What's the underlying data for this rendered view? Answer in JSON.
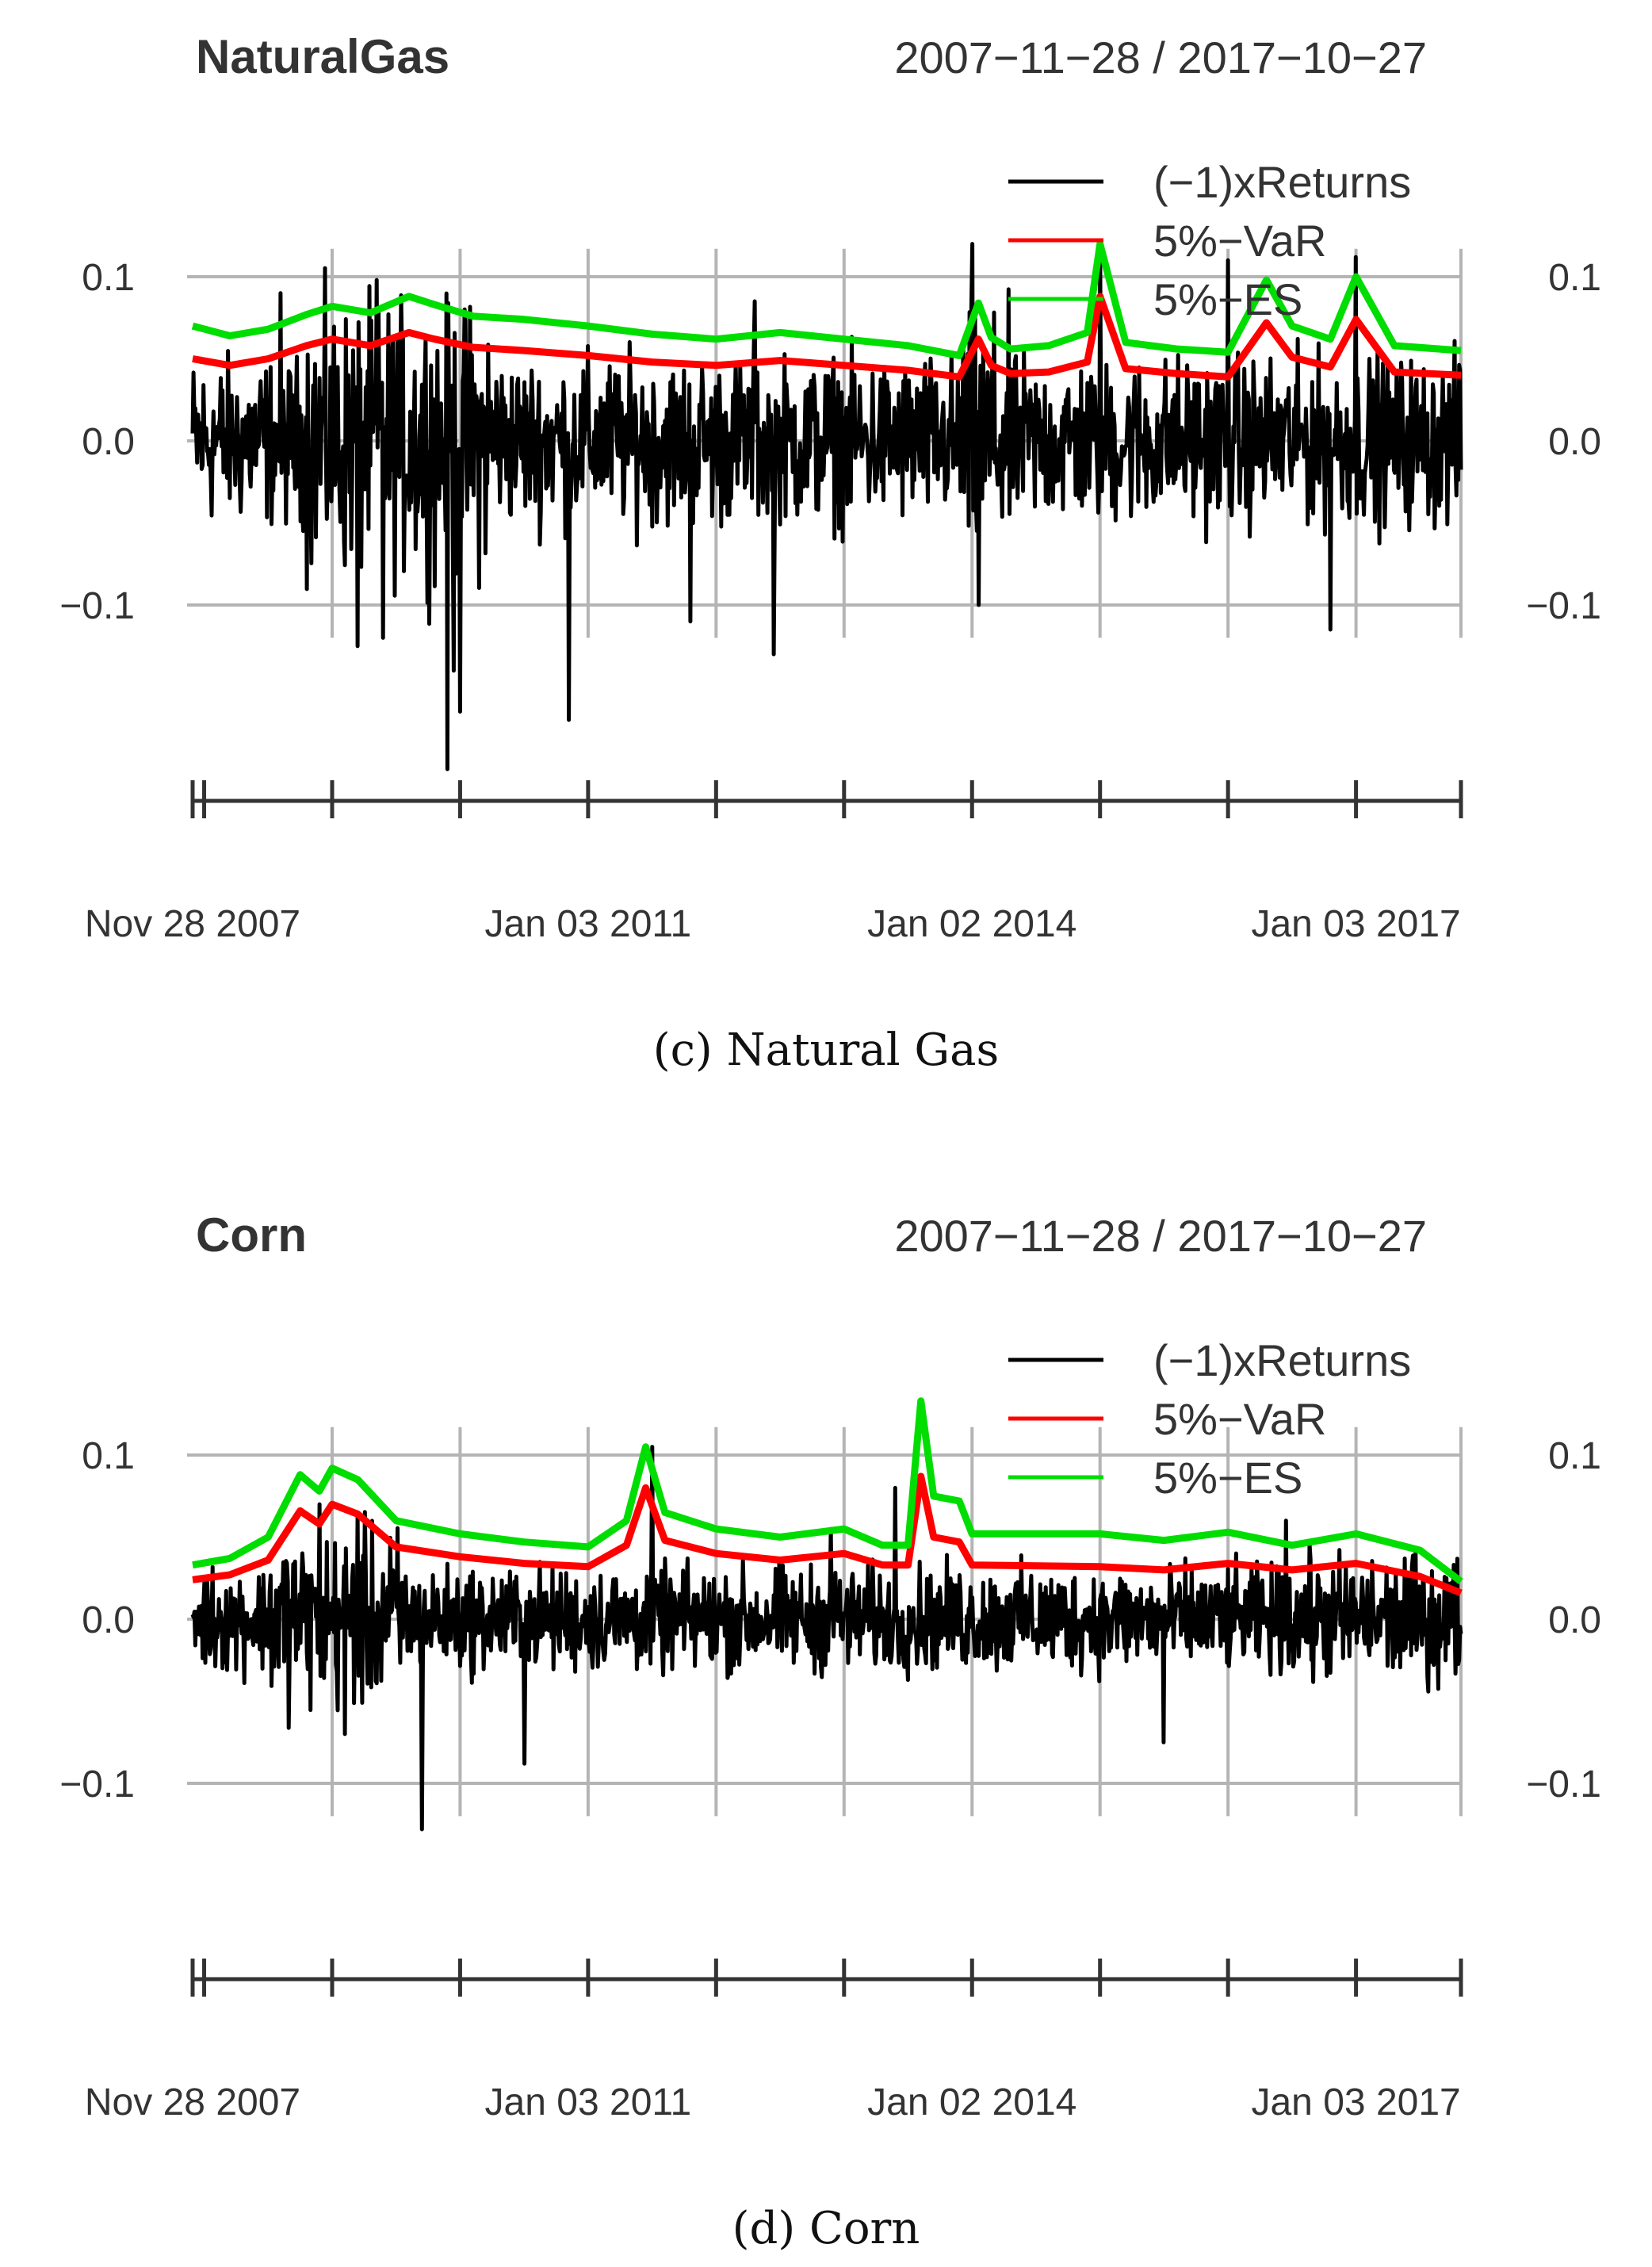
{
  "chart_data": [
    {
      "type": "line",
      "title": "NaturalGas",
      "date_range": "2007−11−28 / 2017−10−27",
      "caption": "(c)  Natural Gas",
      "ylim": [
        -0.2,
        0.15
      ],
      "y_ticks": [
        {
          "value": 0.1,
          "label": "0.1"
        },
        {
          "value": 0.0,
          "label": "0.0"
        },
        {
          "value": -0.1,
          "label": "−0.1"
        }
      ],
      "x_grid_dates": [
        2009.0,
        2010.0,
        2011.0,
        2012.0,
        2013.0,
        2014.0,
        2015.0,
        2016.0,
        2017.0,
        2017.82
      ],
      "x_ticks": [
        2007.91,
        2008.0,
        2009.0,
        2010.0,
        2011.0,
        2012.0,
        2013.0,
        2014.0,
        2015.0,
        2016.0,
        2017.0,
        2017.82
      ],
      "x_labels": [
        {
          "value": 2007.91,
          "label": "Nov 28 2007"
        },
        {
          "value": 2011.0,
          "label": "Jan 03 2011"
        },
        {
          "value": 2014.0,
          "label": "Jan 02 2014"
        },
        {
          "value": 2017.0,
          "label": "Jan 03 2017"
        }
      ],
      "legend": [
        {
          "label": "(−1)xReturns",
          "color": "#000000"
        },
        {
          "label": "5%−VaR",
          "color": "#ff0000"
        },
        {
          "label": "5%−ES",
          "color": "#00dd00"
        }
      ],
      "series": [
        {
          "name": "5%-ES",
          "color": "#00dd00",
          "x": [
            2007.91,
            2008.2,
            2008.5,
            2008.8,
            2009.0,
            2009.3,
            2009.6,
            2009.8,
            2010.1,
            2010.5,
            2011.0,
            2011.5,
            2012.0,
            2012.5,
            2013.0,
            2013.5,
            2013.9,
            2014.05,
            2014.15,
            2014.3,
            2014.6,
            2014.9,
            2015.0,
            2015.2,
            2015.6,
            2016.0,
            2016.3,
            2016.5,
            2016.8,
            2017.0,
            2017.3,
            2017.82
          ],
          "values": [
            0.07,
            0.064,
            0.068,
            0.077,
            0.082,
            0.078,
            0.088,
            0.083,
            0.076,
            0.074,
            0.07,
            0.065,
            0.062,
            0.066,
            0.062,
            0.058,
            0.052,
            0.084,
            0.063,
            0.056,
            0.058,
            0.066,
            0.12,
            0.06,
            0.056,
            0.054,
            0.098,
            0.07,
            0.062,
            0.1,
            0.058,
            0.055
          ]
        },
        {
          "name": "5%-VaR",
          "color": "#ff0000",
          "x": [
            2007.91,
            2008.2,
            2008.5,
            2008.8,
            2009.0,
            2009.3,
            2009.6,
            2009.8,
            2010.1,
            2010.5,
            2011.0,
            2011.5,
            2012.0,
            2012.5,
            2013.0,
            2013.5,
            2013.9,
            2014.05,
            2014.15,
            2014.3,
            2014.6,
            2014.9,
            2015.0,
            2015.2,
            2015.6,
            2016.0,
            2016.3,
            2016.5,
            2016.8,
            2017.0,
            2017.3,
            2017.82
          ],
          "values": [
            0.05,
            0.046,
            0.05,
            0.058,
            0.062,
            0.058,
            0.066,
            0.062,
            0.057,
            0.055,
            0.052,
            0.048,
            0.046,
            0.049,
            0.046,
            0.043,
            0.039,
            0.062,
            0.046,
            0.041,
            0.042,
            0.048,
            0.088,
            0.044,
            0.041,
            0.039,
            0.072,
            0.051,
            0.045,
            0.074,
            0.042,
            0.04
          ]
        }
      ],
      "returns": {
        "name": "(-1)xReturns",
        "color": "#000000",
        "typical_amplitude": 0.035,
        "spikes": [
          {
            "date": 2009.9,
            "value": -0.2
          },
          {
            "date": 2010.0,
            "value": -0.165
          },
          {
            "date": 2009.95,
            "value": -0.14
          },
          {
            "date": 2010.85,
            "value": -0.17
          },
          {
            "date": 2009.2,
            "value": -0.125
          },
          {
            "date": 2009.4,
            "value": -0.12
          },
          {
            "date": 2012.45,
            "value": -0.13
          },
          {
            "date": 2011.8,
            "value": -0.11
          },
          {
            "date": 2014.05,
            "value": -0.1
          },
          {
            "date": 2015.0,
            "value": -0.095
          },
          {
            "date": 2016.0,
            "value": -0.105
          },
          {
            "date": 2016.8,
            "value": -0.115
          },
          {
            "date": 2008.6,
            "value": 0.09
          },
          {
            "date": 2009.35,
            "value": 0.098
          },
          {
            "date": 2012.3,
            "value": 0.085
          },
          {
            "date": 2014.0,
            "value": 0.12
          },
          {
            "date": 2015.0,
            "value": 0.115
          },
          {
            "date": 2016.0,
            "value": 0.11
          },
          {
            "date": 2017.0,
            "value": 0.112
          }
        ]
      }
    },
    {
      "type": "line",
      "title": "Corn",
      "date_range": "2007−11−28 / 2017−10−27",
      "caption": "(d)  Corn",
      "ylim": [
        -0.2,
        0.15
      ],
      "y_ticks": [
        {
          "value": 0.1,
          "label": "0.1"
        },
        {
          "value": 0.0,
          "label": "0.0"
        },
        {
          "value": -0.1,
          "label": "−0.1"
        }
      ],
      "x_grid_dates": [
        2009.0,
        2010.0,
        2011.0,
        2012.0,
        2013.0,
        2014.0,
        2015.0,
        2016.0,
        2017.0,
        2017.82
      ],
      "x_ticks": [
        2007.91,
        2008.0,
        2009.0,
        2010.0,
        2011.0,
        2012.0,
        2013.0,
        2014.0,
        2015.0,
        2016.0,
        2017.0,
        2017.82
      ],
      "x_labels": [
        {
          "value": 2007.91,
          "label": "Nov 28 2007"
        },
        {
          "value": 2011.0,
          "label": "Jan 03 2011"
        },
        {
          "value": 2014.0,
          "label": "Jan 02 2014"
        },
        {
          "value": 2017.0,
          "label": "Jan 03 2017"
        }
      ],
      "legend": [
        {
          "label": "(−1)xReturns",
          "color": "#000000"
        },
        {
          "label": "5%−VaR",
          "color": "#ff0000"
        },
        {
          "label": "5%−ES",
          "color": "#00dd00"
        }
      ],
      "series": [
        {
          "name": "5%-ES",
          "color": "#00dd00",
          "x": [
            2007.91,
            2008.2,
            2008.5,
            2008.75,
            2008.9,
            2009.0,
            2009.2,
            2009.5,
            2010.0,
            2010.5,
            2011.0,
            2011.3,
            2011.45,
            2011.6,
            2012.0,
            2012.5,
            2013.0,
            2013.3,
            2013.5,
            2013.6,
            2013.7,
            2013.9,
            2014.0,
            2015.0,
            2015.5,
            2016.0,
            2016.5,
            2017.0,
            2017.5,
            2017.82
          ],
          "values": [
            0.033,
            0.037,
            0.05,
            0.088,
            0.078,
            0.092,
            0.085,
            0.06,
            0.052,
            0.047,
            0.044,
            0.06,
            0.105,
            0.065,
            0.055,
            0.05,
            0.055,
            0.045,
            0.045,
            0.133,
            0.075,
            0.072,
            0.052,
            0.052,
            0.048,
            0.053,
            0.045,
            0.052,
            0.042,
            0.023
          ]
        },
        {
          "name": "5%-VaR",
          "color": "#ff0000",
          "x": [
            2007.91,
            2008.2,
            2008.5,
            2008.75,
            2008.9,
            2009.0,
            2009.2,
            2009.5,
            2010.0,
            2010.5,
            2011.0,
            2011.3,
            2011.45,
            2011.6,
            2012.0,
            2012.5,
            2013.0,
            2013.3,
            2013.5,
            2013.6,
            2013.7,
            2013.9,
            2014.0,
            2015.0,
            2015.5,
            2016.0,
            2016.5,
            2017.0,
            2017.5,
            2017.82
          ],
          "values": [
            0.024,
            0.027,
            0.036,
            0.066,
            0.058,
            0.07,
            0.064,
            0.044,
            0.038,
            0.034,
            0.032,
            0.045,
            0.08,
            0.048,
            0.04,
            0.036,
            0.04,
            0.033,
            0.033,
            0.087,
            0.05,
            0.047,
            0.033,
            0.032,
            0.03,
            0.034,
            0.03,
            0.034,
            0.026,
            0.016
          ]
        }
      ],
      "returns": {
        "name": "(-1)xReturns",
        "color": "#000000",
        "typical_amplitude": 0.022,
        "spikes": [
          {
            "date": 2009.7,
            "value": -0.128
          },
          {
            "date": 2010.5,
            "value": -0.088
          },
          {
            "date": 2008.9,
            "value": -0.075
          },
          {
            "date": 2009.1,
            "value": -0.07
          },
          {
            "date": 2015.5,
            "value": -0.075
          },
          {
            "date": 2011.5,
            "value": 0.105
          },
          {
            "date": 2013.4,
            "value": 0.08
          },
          {
            "date": 2008.9,
            "value": 0.07
          },
          {
            "date": 2009.2,
            "value": 0.065
          },
          {
            "date": 2016.45,
            "value": 0.06
          },
          {
            "date": 2012.9,
            "value": 0.055
          }
        ]
      }
    }
  ]
}
